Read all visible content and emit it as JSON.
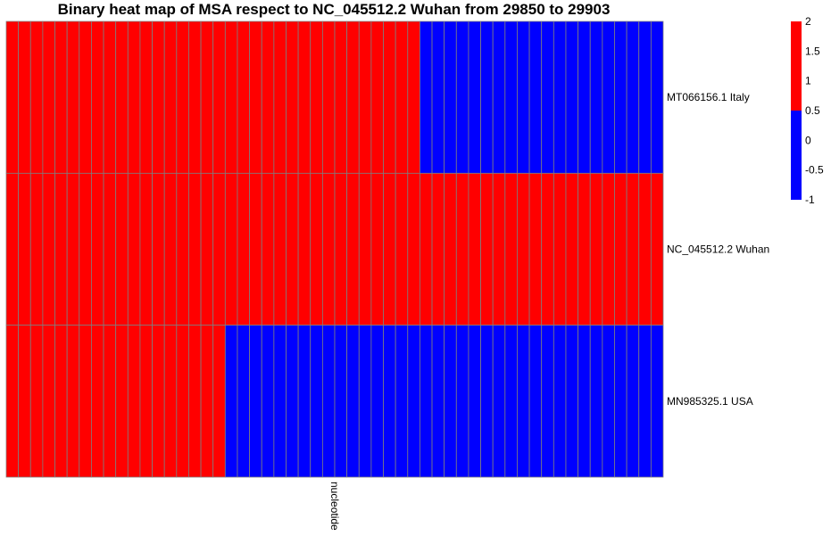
{
  "chart_data": {
    "type": "heatmap",
    "title": "Binary heat map of MSA respect to NC_045512.2 Wuhan from 29850 to 29903",
    "xlabel": "nucleotide",
    "ylabel": "",
    "rows": [
      "MT066156.1 Italy",
      "NC_045512.2 Wuhan",
      "MN985325.1 USA"
    ],
    "n_columns": 54,
    "values": [
      [
        2,
        2,
        2,
        2,
        2,
        2,
        2,
        2,
        2,
        2,
        2,
        2,
        2,
        2,
        2,
        2,
        2,
        2,
        2,
        2,
        2,
        2,
        2,
        2,
        2,
        2,
        2,
        2,
        2,
        2,
        2,
        2,
        2,
        2,
        -1,
        -1,
        -1,
        -1,
        -1,
        -1,
        -1,
        -1,
        -1,
        -1,
        -1,
        -1,
        -1,
        -1,
        -1,
        -1,
        -1,
        -1,
        -1,
        -1
      ],
      [
        2,
        2,
        2,
        2,
        2,
        2,
        2,
        2,
        2,
        2,
        2,
        2,
        2,
        2,
        2,
        2,
        2,
        2,
        2,
        2,
        2,
        2,
        2,
        2,
        2,
        2,
        2,
        2,
        2,
        2,
        2,
        2,
        2,
        2,
        2,
        2,
        2,
        2,
        2,
        2,
        2,
        2,
        2,
        2,
        2,
        2,
        2,
        2,
        2,
        2,
        2,
        2,
        2,
        2
      ],
      [
        2,
        2,
        2,
        2,
        2,
        2,
        2,
        2,
        2,
        2,
        2,
        2,
        2,
        2,
        2,
        2,
        2,
        2,
        -1,
        -1,
        -1,
        -1,
        -1,
        -1,
        -1,
        -1,
        -1,
        -1,
        -1,
        -1,
        -1,
        -1,
        -1,
        -1,
        -1,
        -1,
        -1,
        -1,
        -1,
        -1,
        -1,
        -1,
        -1,
        -1,
        -1,
        -1,
        -1,
        -1,
        -1,
        -1,
        -1,
        -1,
        -1,
        -1
      ]
    ],
    "value_range": [
      -1,
      2
    ],
    "threshold": 0.5,
    "colors": {
      "low": "#0000ff",
      "high": "#ff0000",
      "cell_border": "#7f7f7f"
    },
    "legend": {
      "ticks": [
        "2",
        "1.5",
        "1",
        "0.5",
        "0",
        "-0.5",
        "-1"
      ],
      "tick_values": [
        2,
        1.5,
        1,
        0.5,
        0,
        -0.5,
        -1
      ],
      "placement": "top-right"
    }
  }
}
